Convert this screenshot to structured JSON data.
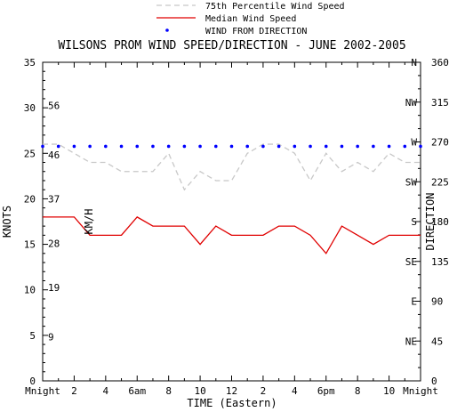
{
  "chart_data": {
    "type": "line",
    "title": "WILSONS PROM WIND SPEED/DIRECTION - JUNE 2002-2005",
    "xlabel": "TIME (Eastern)",
    "ylabel_left": "KNOTS",
    "ylabel_left_inner": "KM/H",
    "ylabel_right": "DIRECTION",
    "xlim": [
      0,
      24
    ],
    "ylim": [
      0,
      35
    ],
    "right_ylim": [
      0,
      360
    ],
    "x_tick_labels": [
      "Mnight",
      "2",
      "4",
      "6am",
      "8",
      "10",
      "12",
      "2",
      "4",
      "6pm",
      "8",
      "10",
      "Mnight"
    ],
    "knots_ticks": [
      "0",
      "5",
      "10",
      "15",
      "20",
      "25",
      "30",
      "35"
    ],
    "kmh_ticks": [
      "9",
      "19",
      "28",
      "37",
      "46",
      "56"
    ],
    "direction_ticks": [
      {
        "deg": 0,
        "label": "0"
      },
      {
        "deg": 45,
        "label": "45"
      },
      {
        "deg": 90,
        "label": "90"
      },
      {
        "deg": 135,
        "label": "135"
      },
      {
        "deg": 180,
        "label": "180"
      },
      {
        "deg": 225,
        "label": "225"
      },
      {
        "deg": 270,
        "label": "270"
      },
      {
        "deg": 315,
        "label": "315"
      },
      {
        "deg": 360,
        "label": "360"
      }
    ],
    "compass_ticks": [
      {
        "deg": 45,
        "label": "NE"
      },
      {
        "deg": 90,
        "label": "E"
      },
      {
        "deg": 135,
        "label": "SE"
      },
      {
        "deg": 180,
        "label": "S"
      },
      {
        "deg": 225,
        "label": "SW"
      },
      {
        "deg": 270,
        "label": "W"
      },
      {
        "deg": 315,
        "label": "NW"
      },
      {
        "deg": 360,
        "label": "N"
      }
    ],
    "legend_position": "top-right",
    "series": [
      {
        "name": "75th Percentile Wind Speed",
        "style": "dashed",
        "color": "#c8c8c8",
        "x": [
          0,
          1,
          2,
          3,
          4,
          5,
          6,
          7,
          8,
          9,
          10,
          11,
          12,
          13,
          14,
          15,
          16,
          17,
          18,
          19,
          20,
          21,
          22,
          23,
          24
        ],
        "values": [
          26,
          26,
          25,
          24,
          24,
          23,
          23,
          23,
          25,
          21,
          23,
          22,
          22,
          25,
          26,
          26,
          25,
          22,
          25,
          23,
          24,
          23,
          25,
          24,
          24
        ]
      },
      {
        "name": "Median Wind Speed",
        "style": "solid",
        "color": "#e00000",
        "x": [
          0,
          1,
          2,
          3,
          4,
          5,
          6,
          7,
          8,
          9,
          10,
          11,
          12,
          13,
          14,
          15,
          16,
          17,
          18,
          19,
          20,
          21,
          22,
          23,
          24
        ],
        "values": [
          18,
          18,
          18,
          16,
          16,
          16,
          18,
          17,
          17,
          17,
          15,
          17,
          16,
          16,
          16,
          17,
          17,
          16,
          14,
          17,
          16,
          15,
          16,
          16,
          16
        ]
      },
      {
        "name": "WIND FROM DIRECTION",
        "style": "dots",
        "color": "#0000ff",
        "axis": "right",
        "x": [
          0,
          1,
          2,
          3,
          4,
          5,
          6,
          7,
          8,
          9,
          10,
          11,
          12,
          13,
          14,
          15,
          16,
          17,
          18,
          19,
          20,
          21,
          22,
          23,
          24
        ],
        "values": [
          265,
          265,
          265,
          265,
          265,
          265,
          265,
          265,
          265,
          265,
          265,
          265,
          265,
          265,
          265,
          265,
          265,
          265,
          265,
          265,
          265,
          265,
          265,
          265,
          265
        ]
      }
    ]
  }
}
